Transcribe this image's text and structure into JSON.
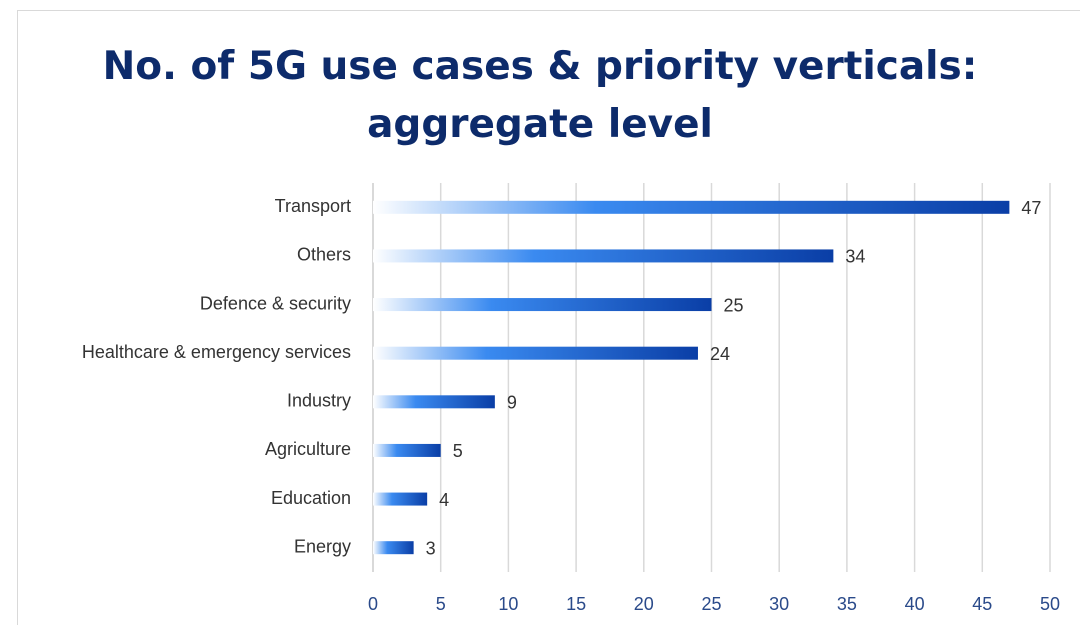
{
  "chart_data": {
    "type": "hbar",
    "title": "No. of 5G use cases & priority verticals: aggregate level",
    "categories": [
      "Transport",
      "Others",
      "Defence & security",
      "Healthcare & emergency services",
      "Industry",
      "Agriculture",
      "Education",
      "Energy"
    ],
    "values": [
      47,
      34,
      25,
      24,
      9,
      5,
      4,
      3
    ],
    "colors": [
      "#ffffff",
      "#3a8af0",
      "#0a3ea6"
    ],
    "xlim": [
      0,
      50
    ],
    "xticks": [
      0,
      5,
      10,
      15,
      20,
      25,
      30,
      35,
      40,
      45,
      50
    ],
    "grid": true
  }
}
